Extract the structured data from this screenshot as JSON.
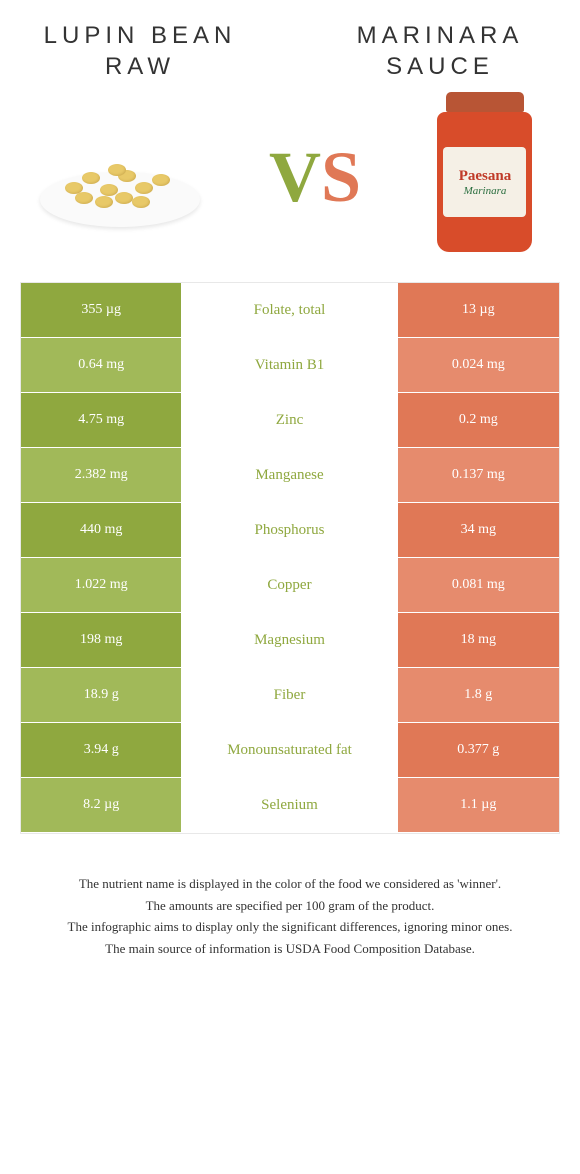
{
  "titles": {
    "left": "LUPIN BEAN\nRAW",
    "right": "MARINARA\nSAUCE"
  },
  "vs": {
    "v": "V",
    "s": "S"
  },
  "jar": {
    "brand": "Paesana",
    "sub": "Marinara"
  },
  "colors": {
    "left": "#8fa83f",
    "left_alt": "#a1b959",
    "right": "#e07856",
    "right_alt": "#e68b6d",
    "bean": "#e8c968",
    "jar": "#d84c2a"
  },
  "rows": [
    {
      "left": "355 µg",
      "mid": "Folate, total",
      "right": "13 µg",
      "winner": "left"
    },
    {
      "left": "0.64 mg",
      "mid": "Vitamin B1",
      "right": "0.024 mg",
      "winner": "left"
    },
    {
      "left": "4.75 mg",
      "mid": "Zinc",
      "right": "0.2 mg",
      "winner": "left"
    },
    {
      "left": "2.382 mg",
      "mid": "Manganese",
      "right": "0.137 mg",
      "winner": "left"
    },
    {
      "left": "440 mg",
      "mid": "Phosphorus",
      "right": "34 mg",
      "winner": "left"
    },
    {
      "left": "1.022 mg",
      "mid": "Copper",
      "right": "0.081 mg",
      "winner": "left"
    },
    {
      "left": "198 mg",
      "mid": "Magnesium",
      "right": "18 mg",
      "winner": "left"
    },
    {
      "left": "18.9 g",
      "mid": "Fiber",
      "right": "1.8 g",
      "winner": "left"
    },
    {
      "left": "3.94 g",
      "mid": "Monounsaturated fat",
      "right": "0.377 g",
      "winner": "left"
    },
    {
      "left": "8.2 µg",
      "mid": "Selenium",
      "right": "1.1 µg",
      "winner": "left"
    }
  ],
  "footer": [
    "The nutrient name is displayed in the color of the food we considered as 'winner'.",
    "The amounts are specified per 100 gram of the product.",
    "The infographic aims to display only the significant differences, ignoring minor ones.",
    "The main source of information is USDA Food Composition Database."
  ]
}
